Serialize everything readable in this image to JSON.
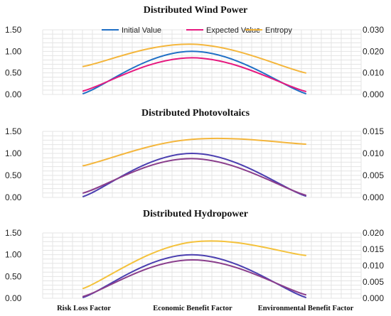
{
  "chart_data": [
    {
      "type": "line",
      "title": "Distributed Wind Power",
      "categories": [
        "Risk Loss Factor",
        "Economic Benefit Factor",
        "Environmental Benefit Factor"
      ],
      "ylim": [
        0,
        1.5
      ],
      "y2lim": [
        0,
        0.03
      ],
      "yticks": [
        "0.00",
        "0.50",
        "1.00",
        "1.50"
      ],
      "y2ticks": [
        "0.000",
        "0.010",
        "0.020",
        "0.030"
      ],
      "grid": true,
      "legend": "top",
      "series": [
        {
          "name": "Initial Value",
          "axis": "left",
          "color": "#1f6fc5",
          "values": [
            0.02,
            1.0,
            0.02
          ]
        },
        {
          "name": "Expected Value",
          "axis": "left",
          "color": "#e6197f",
          "values": [
            0.08,
            0.85,
            0.07
          ]
        },
        {
          "name": "Entropy",
          "axis": "right",
          "color": "#f4b63c",
          "values": [
            0.013,
            0.0233,
            0.01
          ]
        }
      ]
    },
    {
      "type": "line",
      "title": "Distributed Photovoltaics",
      "categories": [
        "Risk Loss Factor",
        "Economic Benefit Factor",
        "Environmental Benefit Factor"
      ],
      "ylim": [
        0,
        1.5
      ],
      "y2lim": [
        0,
        0.015
      ],
      "yticks": [
        "0.00",
        "0.50",
        "1.00",
        "1.50"
      ],
      "y2ticks": [
        "0.000",
        "0.005",
        "0.010",
        "0.015"
      ],
      "grid": true,
      "series": [
        {
          "name": "Initial Value",
          "axis": "left",
          "color": "#4b3fb0",
          "values": [
            0.02,
            1.0,
            0.03
          ]
        },
        {
          "name": "Expected Value",
          "axis": "left",
          "color": "#8a3e8c",
          "values": [
            0.1,
            0.88,
            0.05
          ]
        },
        {
          "name": "Entropy",
          "axis": "right",
          "color": "#f4b63c",
          "values": [
            0.0072,
            0.0132,
            0.0121
          ]
        }
      ]
    },
    {
      "type": "line",
      "title": "Distributed Hydropower",
      "categories": [
        "Risk Loss Factor",
        "Economic Benefit Factor",
        "Environmental Benefit Factor"
      ],
      "ylim": [
        0,
        1.5
      ],
      "y2lim": [
        0,
        0.02
      ],
      "yticks": [
        "0.00",
        "0.50",
        "1.00",
        "1.50"
      ],
      "y2ticks": [
        "0.000",
        "0.005",
        "0.010",
        "0.015",
        "0.020"
      ],
      "grid": true,
      "series": [
        {
          "name": "Initial Value",
          "axis": "left",
          "color": "#4b3fb0",
          "values": [
            0.02,
            1.0,
            0.02
          ]
        },
        {
          "name": "Expected Value",
          "axis": "left",
          "color": "#8a3e8c",
          "values": [
            0.04,
            0.88,
            0.08
          ]
        },
        {
          "name": "Entropy",
          "axis": "right",
          "color": "#f4c23c",
          "values": [
            0.003,
            0.0172,
            0.0131
          ]
        }
      ]
    }
  ]
}
